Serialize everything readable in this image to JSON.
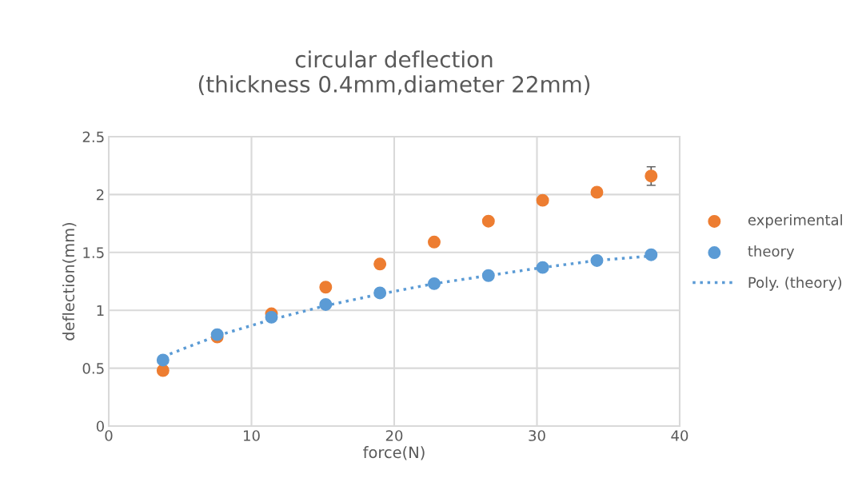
{
  "chart_data": {
    "type": "scatter",
    "title": "circular deflection\n(thickness 0.4mm,diameter 22mm)",
    "xlabel": "force(N)",
    "ylabel": "deflection(mm)",
    "x": [
      3.8,
      7.6,
      11.4,
      15.2,
      19,
      22.8,
      26.6,
      30.4,
      34.2,
      38
    ],
    "series": [
      {
        "name": "experimental",
        "color": "#ed7d31",
        "values": [
          0.48,
          0.77,
          0.97,
          1.2,
          1.4,
          1.59,
          1.77,
          1.95,
          2.02,
          2.16
        ],
        "errors": [
          null,
          null,
          null,
          null,
          null,
          null,
          null,
          null,
          null,
          0.08
        ]
      },
      {
        "name": "theory",
        "color": "#5b9bd5",
        "values": [
          0.57,
          0.79,
          0.94,
          1.05,
          1.15,
          1.23,
          1.3,
          1.37,
          1.43,
          1.48
        ]
      },
      {
        "name": "Poly. (theory)",
        "type": "line",
        "color": "#5b9bd5",
        "line_style": "dotted",
        "marker": "none",
        "x": [
          3.8,
          7.6,
          11.4,
          15.2,
          19,
          22.8,
          26.6,
          30.4,
          34.2,
          38
        ],
        "values": [
          0.6,
          0.78,
          0.92,
          1.04,
          1.14,
          1.23,
          1.3,
          1.37,
          1.43,
          1.47
        ]
      }
    ],
    "marker": "circle",
    "xlim": [
      0,
      40
    ],
    "xticks": [
      0,
      10,
      20,
      30,
      40
    ],
    "ylim": [
      0,
      2.5
    ],
    "yticks": [
      0,
      0.5,
      1,
      1.5,
      2,
      2.5
    ],
    "grid": true,
    "legend": "right"
  }
}
